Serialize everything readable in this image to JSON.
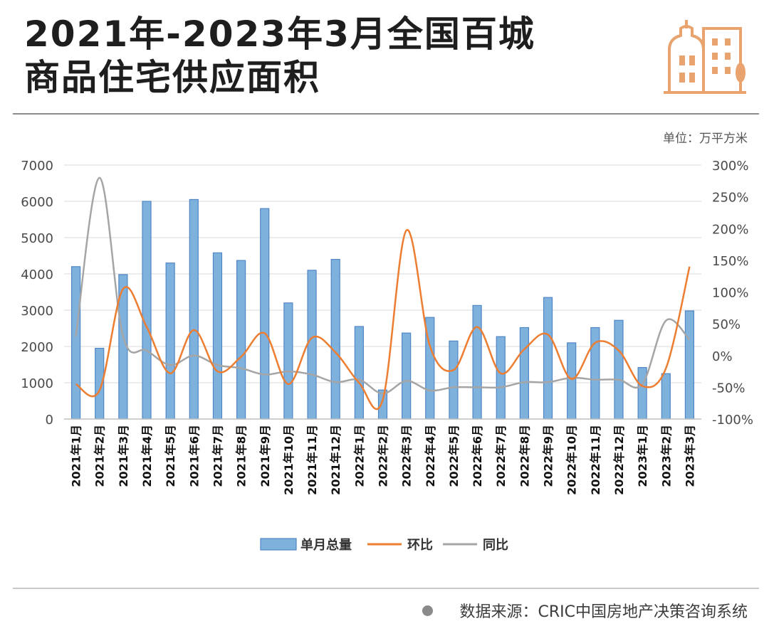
{
  "title": {
    "line1": "2021年-2023年3月全国百城",
    "line2": "商品住宅供应面积"
  },
  "icon": "city-buildings-icon",
  "unit_label": "单位：万平方米",
  "source": {
    "text": "数据来源：CRIC中国房地产决策咨询系统"
  },
  "colors": {
    "bar": "#7fb1dd",
    "bar_border": "#4f86c6",
    "mom_line": "#ed7d31",
    "yoy_line": "#a5a5a5",
    "logo": "#e8a36e"
  },
  "chart_data": {
    "type": "bar",
    "categories": [
      "2021年1月",
      "2021年2月",
      "2021年3月",
      "2021年4月",
      "2021年5月",
      "2021年6月",
      "2021年7月",
      "2021年8月",
      "2021年9月",
      "2021年10月",
      "2021年11月",
      "2021年12月",
      "2022年1月",
      "2022年2月",
      "2022年3月",
      "2022年4月",
      "2022年5月",
      "2022年6月",
      "2022年7月",
      "2022年8月",
      "2022年9月",
      "2022年10月",
      "2022年11月",
      "2022年12月",
      "2023年1月",
      "2023年2月",
      "2023年3月"
    ],
    "y_left": {
      "min": 0,
      "max": 7000,
      "ticks": [
        0,
        1000,
        2000,
        3000,
        4000,
        5000,
        6000,
        7000
      ]
    },
    "y_right": {
      "min": -100,
      "max": 300,
      "ticks": [
        -100,
        -50,
        0,
        50,
        100,
        150,
        200,
        250,
        300
      ],
      "tick_labels": [
        "-100%",
        "-50%",
        "0%",
        "50%",
        "100%",
        "150%",
        "200%",
        "250%",
        "300%"
      ]
    },
    "series": [
      {
        "name": "单月总量",
        "type": "bar",
        "axis": "left",
        "values": [
          4200,
          1950,
          3980,
          6000,
          4300,
          6050,
          4580,
          4370,
          5800,
          3200,
          4100,
          4400,
          2550,
          800,
          2370,
          2800,
          2150,
          3130,
          2270,
          2520,
          3350,
          2100,
          2520,
          2720,
          1420,
          1250,
          2980
        ]
      },
      {
        "name": "环比",
        "type": "line",
        "axis": "right",
        "values": [
          -45,
          -55,
          105,
          45,
          -28,
          40,
          -25,
          -2,
          35,
          -45,
          28,
          5,
          -43,
          -70,
          197,
          15,
          -23,
          45,
          -28,
          10,
          33,
          -37,
          20,
          8,
          -48,
          -20,
          140
        ]
      },
      {
        "name": "同比",
        "type": "line",
        "axis": "right",
        "values": [
          30,
          280,
          30,
          8,
          -15,
          0,
          -15,
          -20,
          -30,
          -25,
          -30,
          -42,
          -38,
          -60,
          -40,
          -55,
          -50,
          -50,
          -50,
          -42,
          -42,
          -35,
          -38,
          -38,
          -45,
          55,
          25
        ]
      }
    ],
    "legend": {
      "position": "bottom",
      "items": [
        "单月总量",
        "环比",
        "同比"
      ]
    }
  }
}
